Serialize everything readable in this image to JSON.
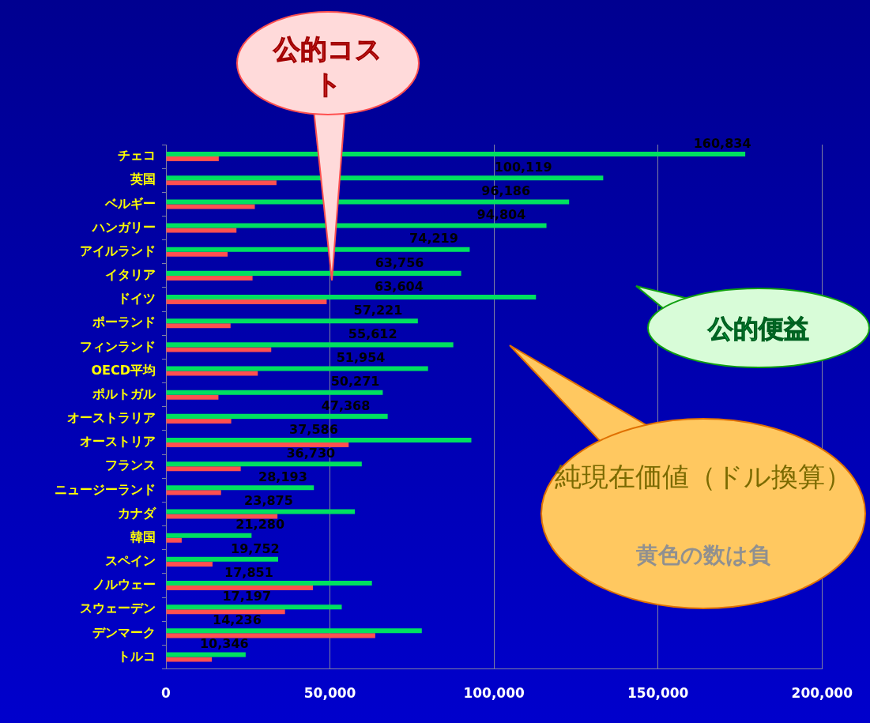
{
  "chart_data": {
    "type": "bar",
    "orientation": "horizontal",
    "categories": [
      "チェコ",
      "英国",
      "ベルギー",
      "ハンガリー",
      "アイルランド",
      "イタリア",
      "ドイツ",
      "ポーランド",
      "フィンランド",
      "OECD平均",
      "ポルトガル",
      "オーストラリア",
      "オーストリア",
      "フランス",
      "ニュージーランド",
      "カナダ",
      "韓国",
      "スペイン",
      "ノルウェー",
      "スウェーデン",
      "デンマーク",
      "トルコ"
    ],
    "series": [
      {
        "name": "公的便益",
        "color": "#00e060",
        "values": [
          176600,
          133300,
          122900,
          116000,
          92600,
          90000,
          112800,
          76800,
          87600,
          79900,
          66100,
          67600,
          93100,
          59700,
          45100,
          57600,
          26100,
          34200,
          62800,
          53600,
          78000,
          24300
        ]
      },
      {
        "name": "公的コスト",
        "color": "#ff5050",
        "values": [
          16100,
          33700,
          27100,
          21500,
          18800,
          26400,
          49000,
          19700,
          32100,
          28000,
          16000,
          19900,
          55700,
          22800,
          16800,
          34000,
          4800,
          14200,
          44800,
          36300,
          63800,
          14000
        ]
      }
    ],
    "xlim": [
      0,
      200000
    ],
    "xticks": [
      {
        "value": 0,
        "label": "0"
      },
      {
        "value": 50000,
        "label": "50,000"
      },
      {
        "value": 100000,
        "label": "100,000"
      },
      {
        "value": 150000,
        "label": "150,000"
      },
      {
        "value": 200000,
        "label": "200,000"
      }
    ],
    "grid": "x",
    "annotations": [
      "純現在価値（ドル換算）",
      "黄色の数は負",
      {
        "text": "160,834",
        "x": 160834,
        "y": "チェコ"
      },
      {
        "text": "100,119",
        "x": 100119,
        "y": "英国"
      },
      {
        "text": "96,186",
        "x": 96186,
        "y": "ベルギー"
      },
      {
        "text": "94,804",
        "x": 94804,
        "y": "ハンガリー"
      },
      {
        "text": "74,219",
        "x": 74219,
        "y": "アイルランド"
      },
      {
        "text": "63,756",
        "x": 63756,
        "y": "イタリア"
      },
      {
        "text": "63,604",
        "x": 63604,
        "y": "ドイツ"
      },
      {
        "text": "57,221",
        "x": 57221,
        "y": "ポーランド"
      },
      {
        "text": "55,612",
        "x": 55612,
        "y": "フィンランド"
      },
      {
        "text": "51,954",
        "x": 51954,
        "y": "OECD平均"
      },
      {
        "text": "50,271",
        "x": 50271,
        "y": "ポルトガル"
      },
      {
        "text": "47,368",
        "x": 47368,
        "y": "オーストラリア"
      },
      {
        "text": "37,586",
        "x": 37586,
        "y": "オーストリア"
      },
      {
        "text": "36,730",
        "x": 36730,
        "y": "フランス"
      },
      {
        "text": "28,193",
        "x": 28193,
        "y": "ニュージーランド"
      },
      {
        "text": "23,875",
        "x": 23875,
        "y": "カナダ"
      },
      {
        "text": "21,280",
        "x": 21280,
        "y": "韓国"
      },
      {
        "text": "19,752",
        "x": 19752,
        "y": "スペイン"
      },
      {
        "text": "17,851",
        "x": 17851,
        "y": "ノルウェー"
      },
      {
        "text": "17,197",
        "x": 17197,
        "y": "スウェーデン"
      },
      {
        "text": "14,236",
        "x": 14236,
        "y": "デンマーク"
      },
      {
        "text": "10,346",
        "x": 10346,
        "y": "トルコ"
      }
    ]
  }
}
